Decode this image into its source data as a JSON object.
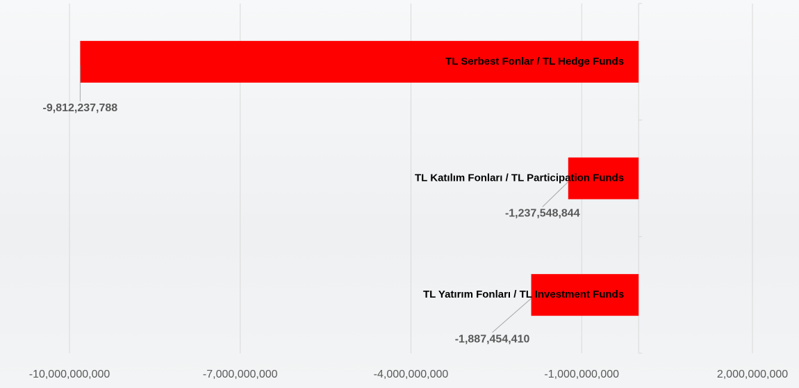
{
  "chart_data": {
    "type": "barh",
    "categories": [
      "TL Serbest Fonlar / TL Hedge Funds",
      "TL Katılım Fonları / TL Participation Funds",
      "TL Yatırım Fonları / TL Investment Funds"
    ],
    "values": [
      -9812237788,
      -1237548844,
      -1887454410
    ],
    "value_labels": [
      "-9,812,237,788",
      "-1,237,548,844",
      "-1,887,454,410"
    ],
    "color": "#ff0000",
    "xlim": [
      -10000000000,
      2000000000
    ],
    "xticks": [
      {
        "value": -10000000000,
        "label": "-10,000,000,000"
      },
      {
        "value": -7000000000,
        "label": "-7,000,000,000"
      },
      {
        "value": -4000000000,
        "label": "-4,000,000,000"
      },
      {
        "value": -1000000000,
        "label": "-1,000,000,000"
      },
      {
        "value": 2000000000,
        "label": "2,000,000,000"
      }
    ],
    "grid": true
  }
}
